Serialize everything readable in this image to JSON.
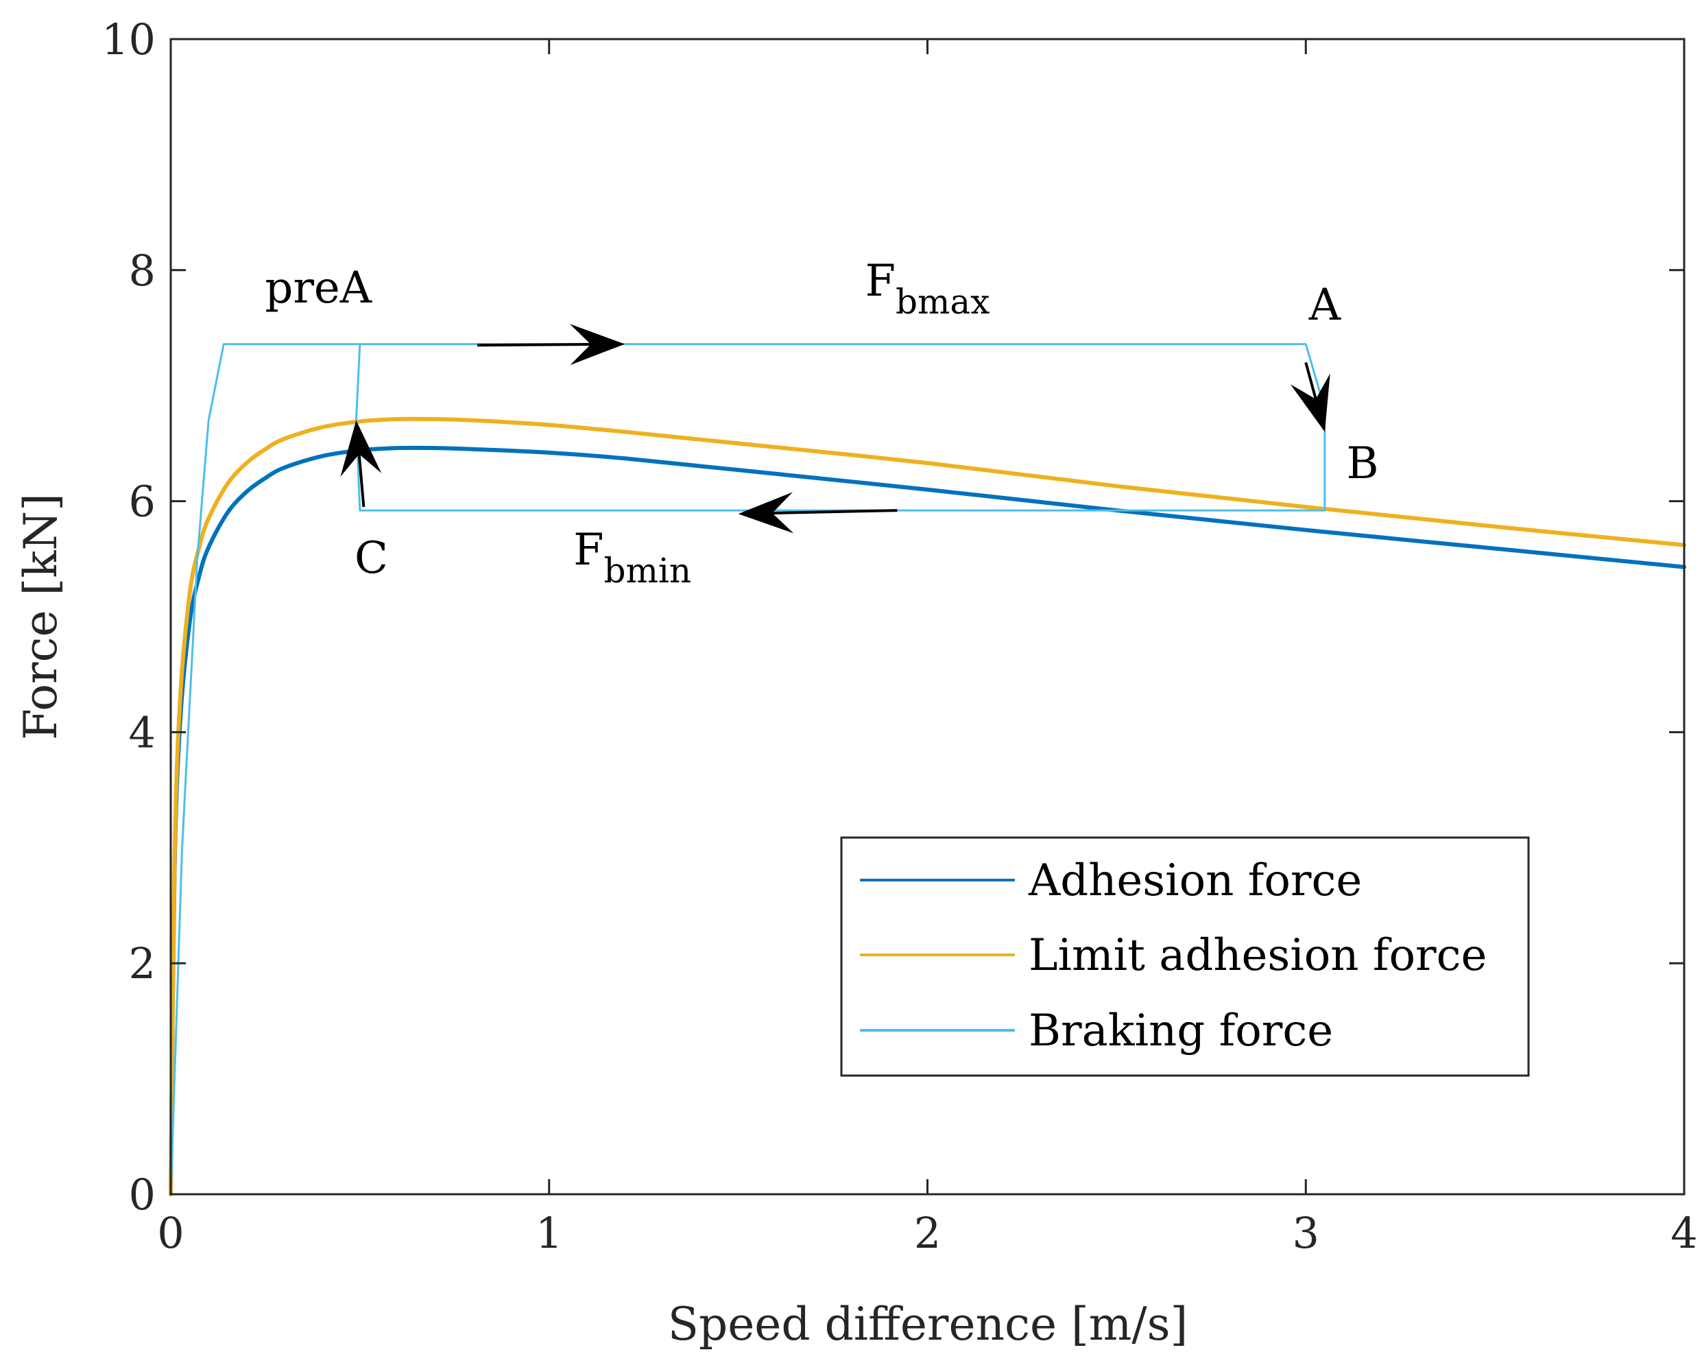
{
  "chart_data": {
    "type": "line",
    "xlabel": "Speed difference [m/s]",
    "ylabel": "Force [kN]",
    "xlim": [
      0,
      4
    ],
    "ylim": [
      0,
      10
    ],
    "xticks": [
      0,
      1,
      2,
      3,
      4
    ],
    "yticks": [
      0,
      2,
      4,
      6,
      8,
      10
    ],
    "xtick_labels": [
      "0",
      "1",
      "2",
      "3",
      "4"
    ],
    "ytick_labels": [
      "0",
      "2",
      "4",
      "6",
      "8",
      "10"
    ],
    "grid": false,
    "legend_position": "bottom-right",
    "series": [
      {
        "name": "Adhesion force",
        "color": "#0072BD",
        "x": [
          0,
          0.01,
          0.025,
          0.05,
          0.075,
          0.1,
          0.15,
          0.2,
          0.25,
          0.3,
          0.4,
          0.5,
          0.6,
          0.7,
          0.8,
          1.0,
          1.2,
          1.5,
          2.0,
          2.5,
          3.0,
          3.5,
          4.0
        ],
        "y": [
          0,
          2.8,
          4.1,
          4.95,
          5.35,
          5.6,
          5.9,
          6.08,
          6.2,
          6.29,
          6.39,
          6.44,
          6.46,
          6.46,
          6.45,
          6.42,
          6.37,
          6.27,
          6.1,
          5.92,
          5.75,
          5.59,
          5.43
        ]
      },
      {
        "name": "Limit adhesion force",
        "color": "#EDB120",
        "x": [
          0,
          0.01,
          0.025,
          0.05,
          0.075,
          0.1,
          0.15,
          0.2,
          0.25,
          0.3,
          0.4,
          0.5,
          0.6,
          0.7,
          0.8,
          1.0,
          1.2,
          1.5,
          2.0,
          2.5,
          3.0,
          3.5,
          4.0
        ],
        "y": [
          0,
          2.9,
          4.3,
          5.2,
          5.6,
          5.85,
          6.15,
          6.33,
          6.45,
          6.54,
          6.64,
          6.69,
          6.71,
          6.71,
          6.7,
          6.66,
          6.6,
          6.5,
          6.33,
          6.13,
          5.95,
          5.78,
          5.62
        ]
      },
      {
        "name": "Braking force",
        "color": "#4DBEEE",
        "x": [
          0,
          0.03,
          0.07,
          0.1,
          0.14,
          0.5,
          3.0,
          3.05,
          3.05,
          0.5,
          0.49,
          0.5
        ],
        "y": [
          0,
          3.0,
          5.5,
          6.7,
          7.36,
          7.36,
          7.36,
          6.8,
          5.92,
          5.92,
          6.7,
          7.36
        ]
      }
    ],
    "annotations": [
      {
        "text": "preA",
        "x": 0.39,
        "y": 7.72
      },
      {
        "text": "F",
        "sub": "bmax",
        "x": 2.0,
        "y": 7.78
      },
      {
        "text": "A",
        "x": 3.05,
        "y": 7.57
      },
      {
        "text": "B",
        "x": 3.15,
        "y": 6.2
      },
      {
        "text": "C",
        "x": 0.53,
        "y": 5.38
      },
      {
        "text": "F",
        "sub": "bmin",
        "x": 1.22,
        "y": 5.45
      }
    ],
    "arrows": [
      {
        "from": [
          0.81,
          7.35
        ],
        "to": [
          1.2,
          7.36
        ]
      },
      {
        "from": [
          3.0,
          7.2
        ],
        "to": [
          3.05,
          6.6
        ]
      },
      {
        "from": [
          1.92,
          5.92
        ],
        "to": [
          1.5,
          5.89
        ]
      },
      {
        "from": [
          0.51,
          5.95
        ],
        "to": [
          0.49,
          6.7
        ]
      }
    ]
  }
}
